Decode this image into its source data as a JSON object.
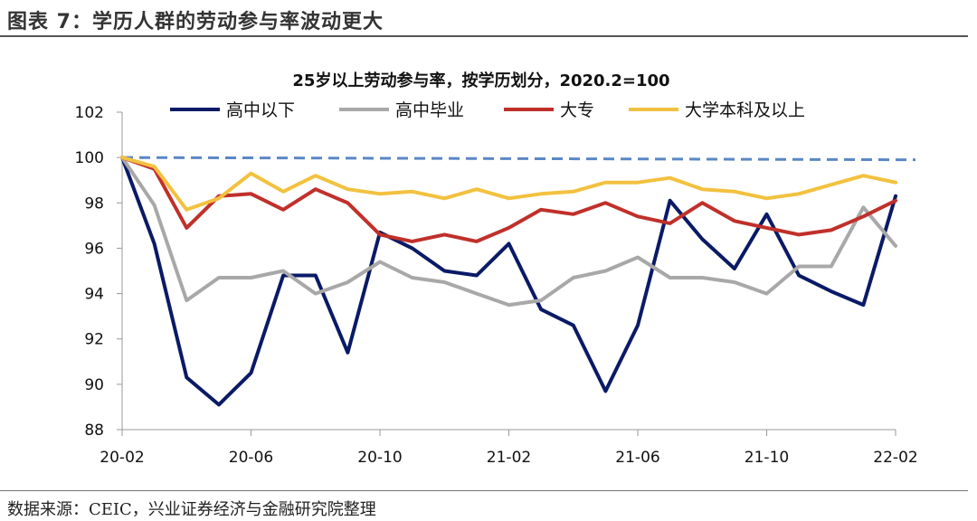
{
  "figure": {
    "title": "图表 7：学历人群的劳动参与率波动更大",
    "source": "数据来源：CEIC，兴业证券经济与金融研究院整理"
  },
  "chart_data": {
    "type": "line",
    "title": "25岁以上劳动参与率，按学历划分，2020.2=100",
    "xlabel": "",
    "ylabel": "",
    "ylim": [
      88,
      102
    ],
    "yticks": [
      88,
      90,
      92,
      94,
      96,
      98,
      100,
      102
    ],
    "x": [
      "2020-02",
      "2020-03",
      "2020-04",
      "2020-05",
      "2020-06",
      "2020-07",
      "2020-08",
      "2020-09",
      "2020-10",
      "2020-11",
      "2020-12",
      "2021-01",
      "2021-02",
      "2021-03",
      "2021-04",
      "2021-05",
      "2021-06",
      "2021-07",
      "2021-08",
      "2021-09",
      "2021-10",
      "2021-11",
      "2021-12",
      "2022-01",
      "2022-02"
    ],
    "xtick_labels": [
      "20-02",
      "20-06",
      "20-10",
      "21-02",
      "21-06",
      "21-10",
      "22-02"
    ],
    "xtick_index": [
      0,
      4,
      8,
      12,
      16,
      20,
      24
    ],
    "legend_position": "top",
    "grid": false,
    "reference_line": {
      "value": 100,
      "end_value": 99.9,
      "color": "#5b87c5",
      "style": "dashed"
    },
    "series": [
      {
        "name": "高中以下",
        "color": "#0a1a66",
        "values": [
          100,
          96.2,
          90.3,
          89.1,
          90.5,
          94.8,
          94.8,
          91.4,
          96.7,
          96.0,
          95.0,
          94.8,
          96.2,
          93.3,
          92.6,
          89.7,
          92.6,
          98.1,
          96.4,
          95.1,
          97.5,
          94.8,
          94.1,
          93.5,
          98.3
        ]
      },
      {
        "name": "高中毕业",
        "color": "#a8a8a8",
        "values": [
          100,
          97.9,
          93.7,
          94.7,
          94.7,
          95.0,
          94.0,
          94.5,
          95.4,
          94.7,
          94.5,
          94.0,
          93.5,
          93.7,
          94.7,
          95.0,
          95.6,
          94.7,
          94.7,
          94.5,
          94.0,
          95.2,
          95.2,
          97.8,
          96.1
        ]
      },
      {
        "name": "大专",
        "color": "#c0302a",
        "values": [
          100,
          99.5,
          96.9,
          98.3,
          98.4,
          97.7,
          98.6,
          98.0,
          96.6,
          96.3,
          96.6,
          96.3,
          96.9,
          97.7,
          97.5,
          98.0,
          97.4,
          97.1,
          98.0,
          97.2,
          96.9,
          96.6,
          96.8,
          97.4,
          98.1
        ]
      },
      {
        "name": "大学本科及以上",
        "color": "#f2c13f",
        "values": [
          100,
          99.6,
          97.7,
          98.2,
          99.3,
          98.5,
          99.2,
          98.6,
          98.4,
          98.5,
          98.2,
          98.6,
          98.2,
          98.4,
          98.5,
          98.9,
          98.9,
          99.1,
          98.6,
          98.5,
          98.2,
          98.4,
          98.8,
          99.2,
          98.9
        ]
      }
    ]
  }
}
